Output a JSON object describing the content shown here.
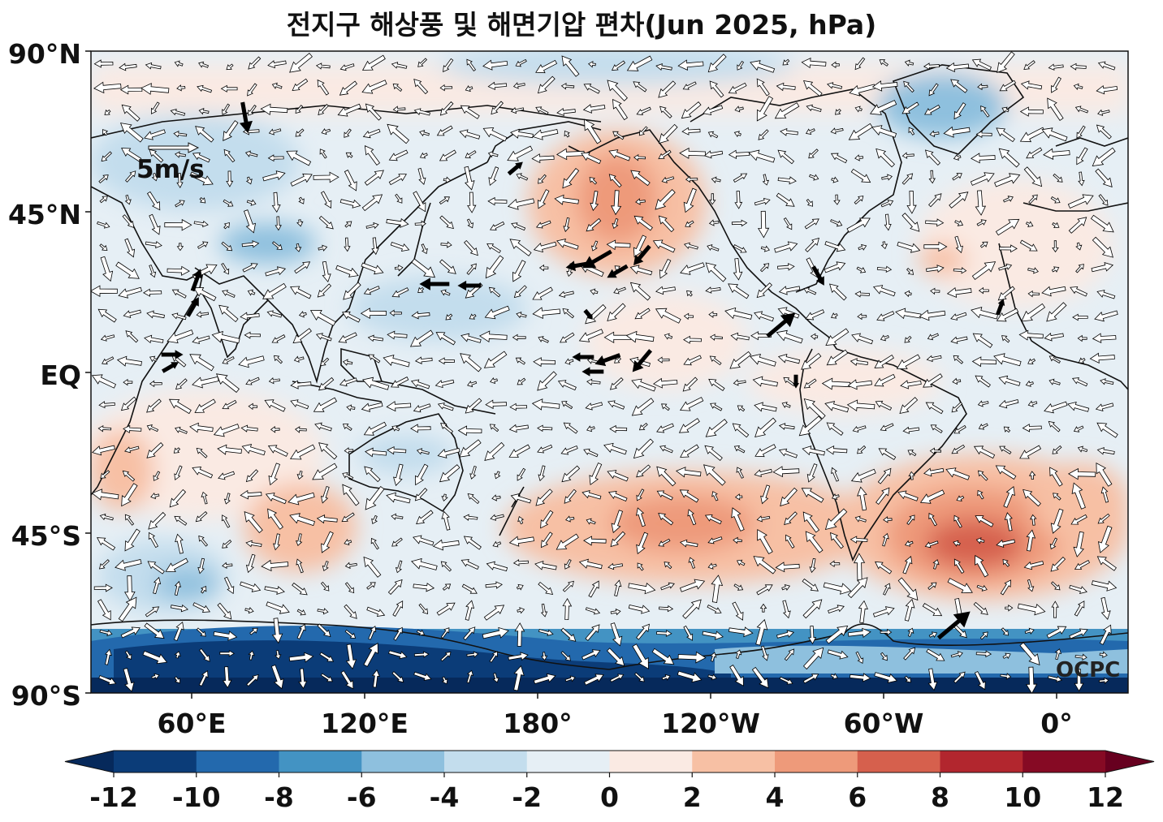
{
  "title": "전지구 해상풍 및 해면기압 편차(Jun 2025, hPa)",
  "credit": "OCPC",
  "reference_vector_label": "5m/s",
  "y_axis_ticks": [
    "90°N",
    "45°N",
    "EQ",
    "45°S",
    "90°S"
  ],
  "x_axis_ticks": [
    "60°E",
    "120°E",
    "180°",
    "120°W",
    "60°W",
    "0°"
  ],
  "colorbar": {
    "ticks": [
      "-12",
      "-10",
      "-8",
      "-6",
      "-4",
      "-2",
      "0",
      "2",
      "4",
      "6",
      "8",
      "10",
      "12"
    ],
    "colors": [
      "#0b3c78",
      "#2369ad",
      "#4393c3",
      "#8ec0de",
      "#c3dded",
      "#e6eff5",
      "#faeae3",
      "#f7c0a4",
      "#ee9a7a",
      "#d6604d",
      "#b2262e",
      "#860a24"
    ],
    "under_color": "#06295b",
    "over_color": "#67001f"
  }
}
